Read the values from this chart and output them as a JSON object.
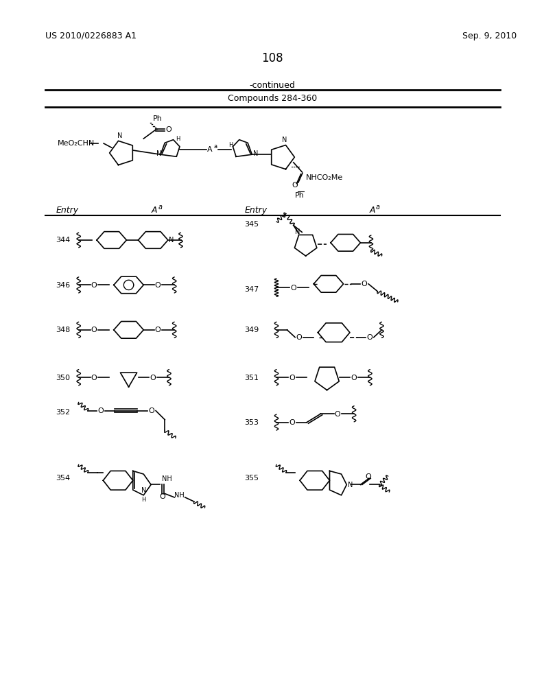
{
  "page_number": "108",
  "patent_number": "US 2010/0226883 A1",
  "patent_date": "Sep. 9, 2010",
  "continued_text": "-continued",
  "table_header": "Compounds 284-360",
  "background_color": "#ffffff",
  "text_color": "#000000"
}
